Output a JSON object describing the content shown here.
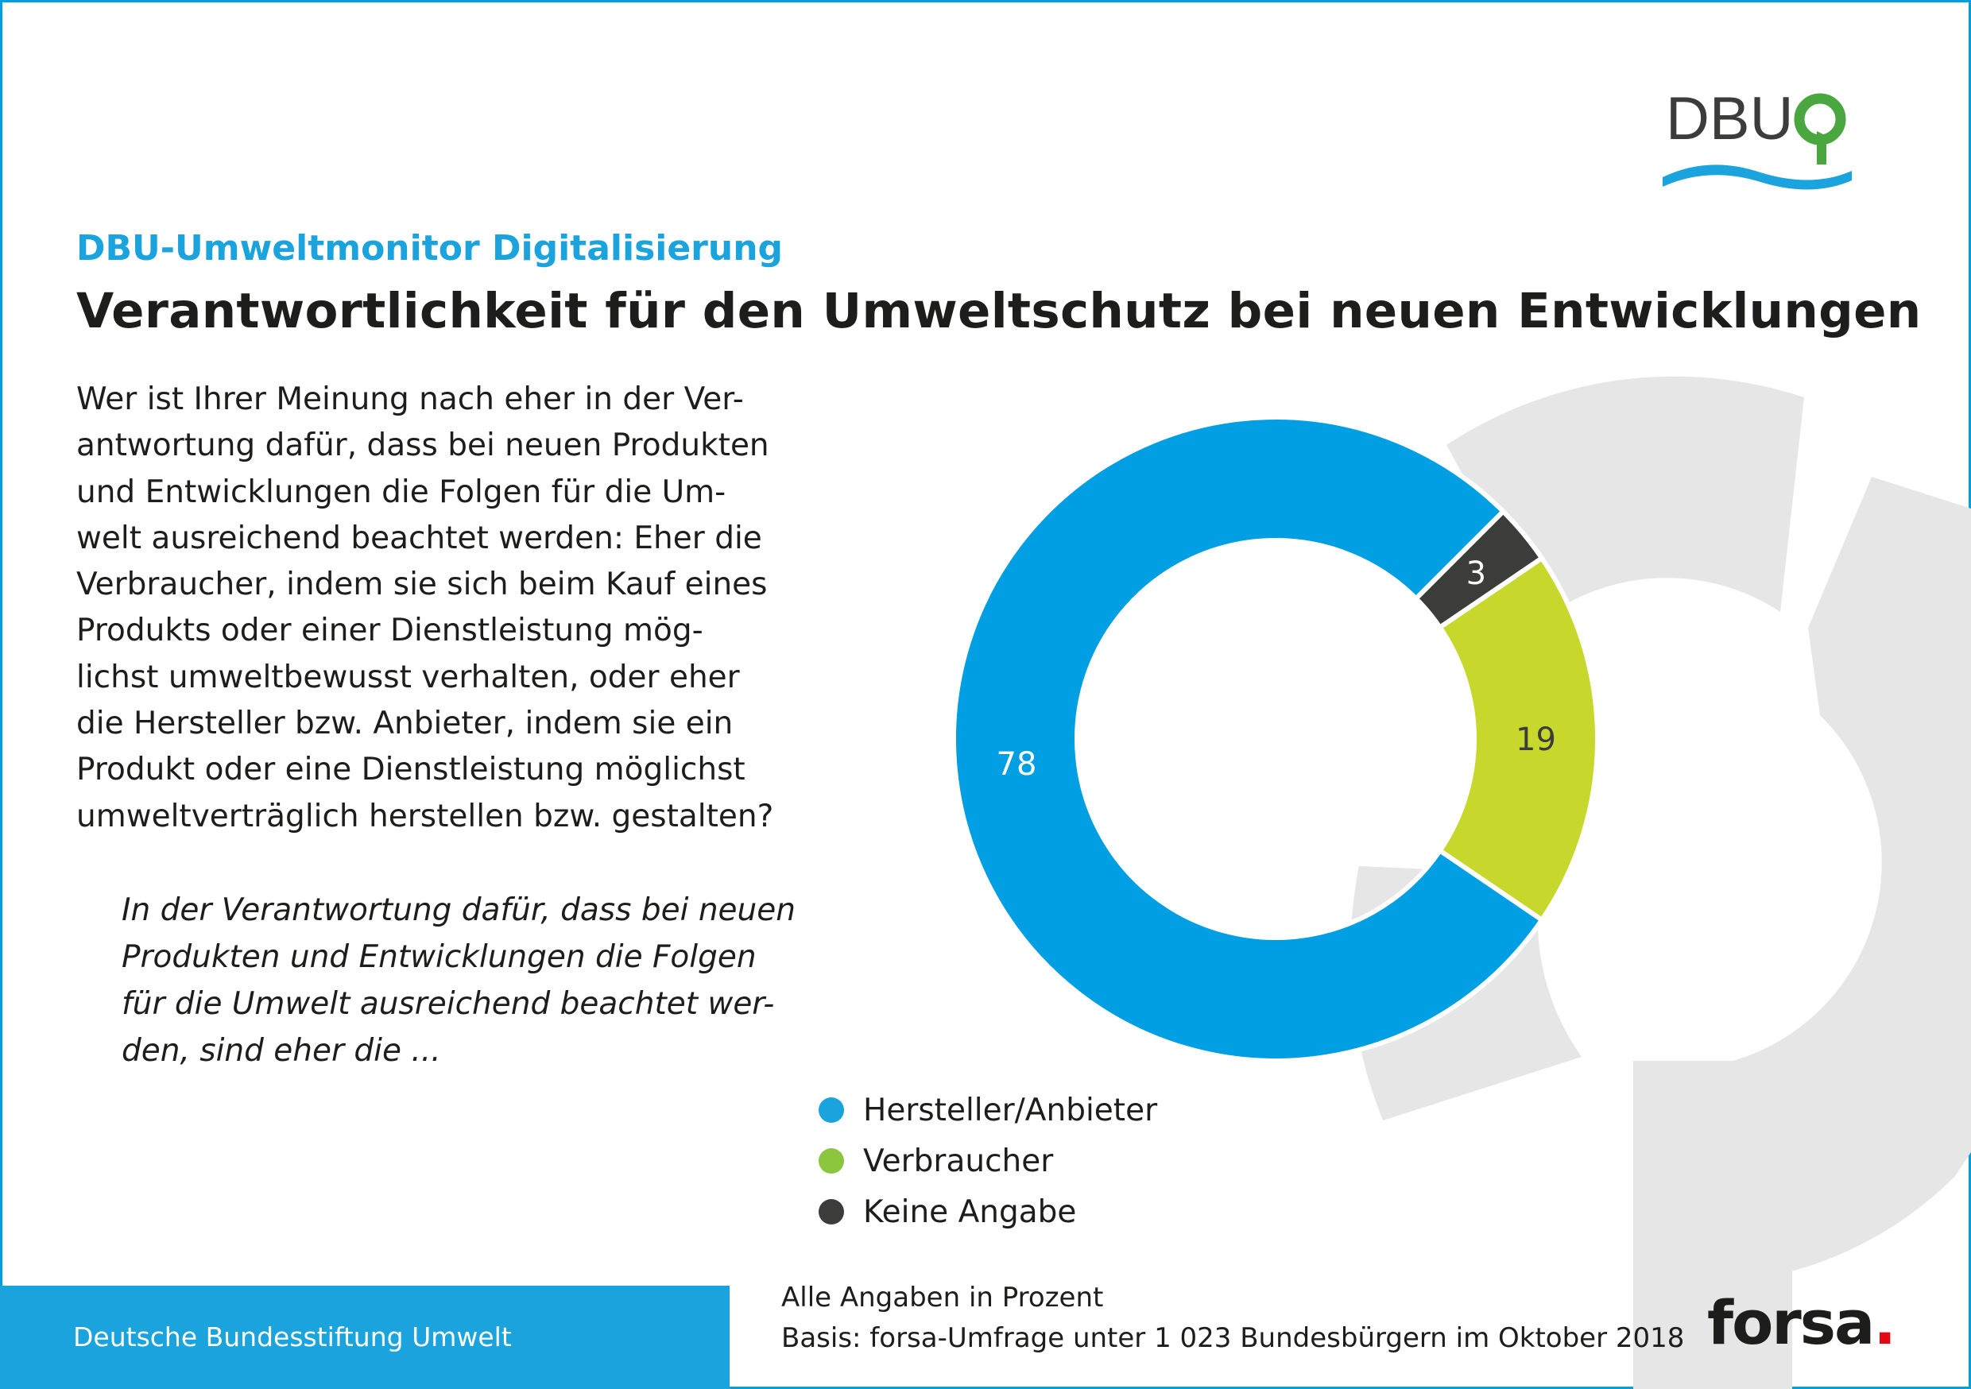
{
  "logo": {
    "text": "DBU",
    "icon": "dbu-tree-icon",
    "wave_color": "#1aa3dd",
    "tree_color": "#4aa63e"
  },
  "header": {
    "subtitle": "DBU-Umweltmonitor Digitalisierung",
    "title": "Verantwortlichkeit für den Umweltschutz bei neuen Entwicklungen"
  },
  "question": {
    "lines": [
      "Wer ist Ihrer Meinung nach eher in der Ver-",
      "antwortung dafür, dass bei neuen Produkten",
      "und Entwicklungen die Folgen für die Um-",
      "welt ausreichend beachtet werden: Eher die",
      "Verbraucher, indem sie sich beim Kauf eines",
      "Produkts oder einer Dienstleistung mög-",
      "lichst umweltbewusst verhalten, oder eher",
      "die Hersteller bzw. Anbieter, indem sie ein",
      "Produkt oder eine Dienstleistung möglichst",
      "umweltverträglich herstellen bzw. gestalten?"
    ]
  },
  "answer_intro": {
    "lines": [
      "In der Verantwortung dafür, dass bei neuen",
      "Produkten und Entwicklungen die Folgen",
      "für die Umwelt ausreichend beachtet wer-",
      "den, sind eher die ..."
    ]
  },
  "chart_data": {
    "type": "pie",
    "variant": "donut",
    "unit": "Prozent",
    "slices": [
      {
        "label": "Hersteller/Anbieter",
        "value": 78,
        "color": "#009fe3"
      },
      {
        "label": "Verbraucher",
        "value": 19,
        "color": "#c8d72c"
      },
      {
        "label": "Keine Angabe",
        "value": 3,
        "color": "#3c3c3b"
      }
    ],
    "legend_placement": "bottom-left"
  },
  "legend": [
    {
      "label": "Hersteller/Anbieter",
      "color": "#1aa3dd"
    },
    {
      "label": "Verbraucher",
      "color": "#8cc63f"
    },
    {
      "label": "Keine Angabe",
      "color": "#3c3c3b"
    }
  ],
  "footer": {
    "organization": "Deutsche Bundesstiftung Umwelt",
    "note_unit": "Alle Angaben in Prozent",
    "note_basis": "Basis: forsa-Umfrage unter 1 023 Bundesbürgern im Oktober 2018",
    "source_logo": "forsa",
    "source_logo_dot": "."
  }
}
